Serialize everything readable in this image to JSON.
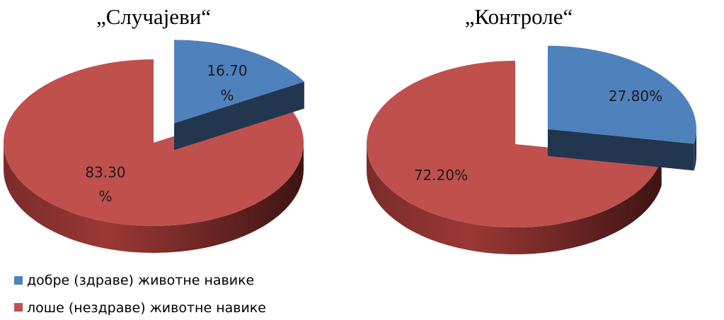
{
  "chart_data": [
    {
      "type": "pie",
      "title": "„Случајеви“",
      "categories": [
        "добре (здраве) животне навике",
        "лоше (нездраве) животне навике"
      ],
      "values": [
        16.7,
        83.3
      ],
      "data_labels": [
        [
          "16.70",
          "%"
        ],
        [
          "83.30",
          "%"
        ]
      ],
      "colors": [
        "#4f81bd",
        "#c0504d"
      ],
      "exploded": "добре (здраве) животне навике",
      "style": "3d"
    },
    {
      "type": "pie",
      "title": "„Контроле“",
      "categories": [
        "добре (здраве) животне навике",
        "лоше (нездраве) животне навике"
      ],
      "values": [
        27.8,
        72.2
      ],
      "data_labels": [
        [
          "27.80%"
        ],
        [
          "72.20%"
        ]
      ],
      "colors": [
        "#4f81bd",
        "#c0504d"
      ],
      "exploded": "добре (здраве) животне навике",
      "style": "3d"
    }
  ],
  "legend": {
    "placement": "bottom-left",
    "items": [
      {
        "label": "добре (здраве) животне навике",
        "color": "#4f81bd"
      },
      {
        "label": "лоше (нездраве) животне навике",
        "color": "#c0504d"
      }
    ]
  }
}
